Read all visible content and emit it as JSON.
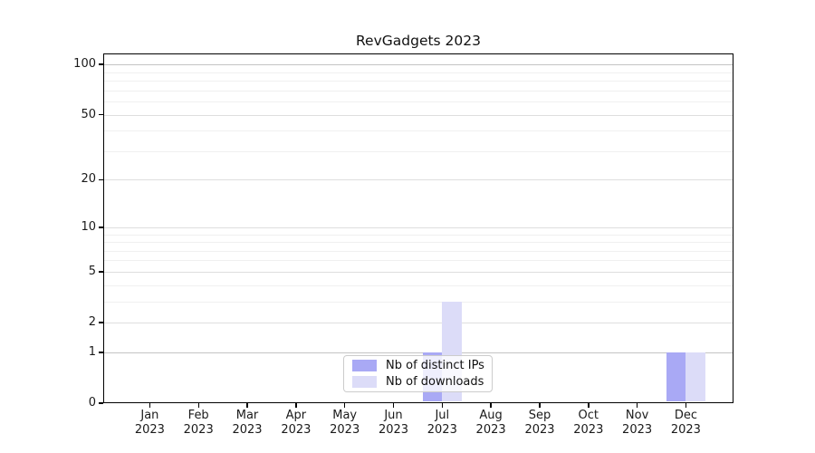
{
  "title": "RevGadgets 2023",
  "chart_data": {
    "type": "bar",
    "title": "RevGadgets 2023",
    "categories": [
      {
        "line1": "Jan",
        "line2": "2023"
      },
      {
        "line1": "Feb",
        "line2": "2023"
      },
      {
        "line1": "Mar",
        "line2": "2023"
      },
      {
        "line1": "Apr",
        "line2": "2023"
      },
      {
        "line1": "May",
        "line2": "2023"
      },
      {
        "line1": "Jun",
        "line2": "2023"
      },
      {
        "line1": "Jul",
        "line2": "2023"
      },
      {
        "line1": "Aug",
        "line2": "2023"
      },
      {
        "line1": "Sep",
        "line2": "2023"
      },
      {
        "line1": "Oct",
        "line2": "2023"
      },
      {
        "line1": "Nov",
        "line2": "2023"
      },
      {
        "line1": "Dec",
        "line2": "2023"
      }
    ],
    "series": [
      {
        "name": "Nb of distinct IPs",
        "color": "#a9a9f5",
        "values": [
          0,
          0,
          0,
          0,
          0,
          0,
          1,
          0,
          0,
          0,
          0,
          1
        ]
      },
      {
        "name": "Nb of downloads",
        "color": "#dcdcf8",
        "values": [
          0,
          0,
          0,
          0,
          0,
          0,
          3,
          0,
          0,
          0,
          0,
          1
        ]
      }
    ],
    "yscale": "log1p",
    "ylim": [
      0,
      110
    ],
    "yticks": [
      0,
      1,
      2,
      5,
      10,
      20,
      50,
      100
    ],
    "ytick_labels": [
      "0",
      "1",
      "2",
      "5",
      "10",
      "20",
      "50",
      "100"
    ],
    "strong_gridlines": [
      1,
      100
    ],
    "minor_yticks": [
      3,
      4,
      6,
      7,
      8,
      9,
      30,
      40,
      60,
      70,
      80,
      90
    ],
    "xlabel": "",
    "ylabel": "",
    "grid": true,
    "legend_position": "lower center"
  }
}
